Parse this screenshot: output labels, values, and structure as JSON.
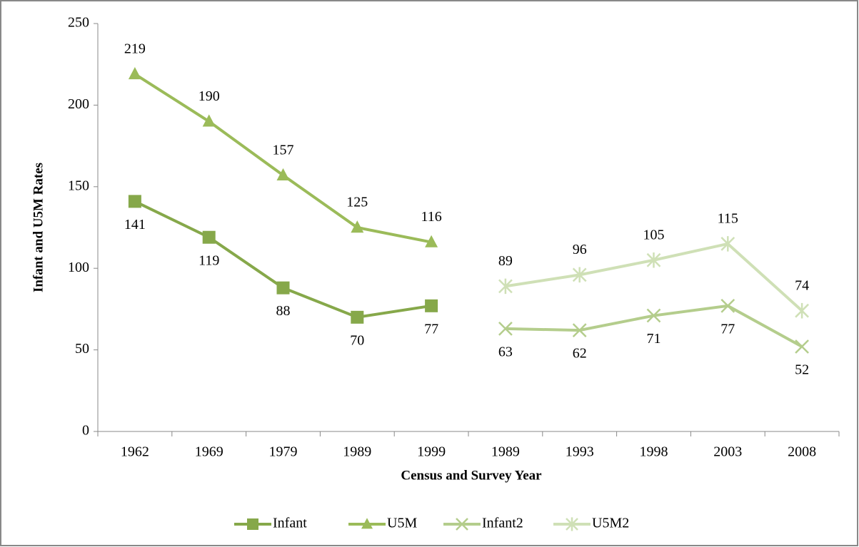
{
  "chart_data": {
    "type": "line",
    "x_label": "Census and Survey Year",
    "y_label": "Infant and U5M  Rates",
    "categories": [
      "1962",
      "1969",
      "1979",
      "1989",
      "1999",
      "1989",
      "1993",
      "1998",
      "2003",
      "2008"
    ],
    "series": [
      {
        "name": "Infant",
        "color": "#86a84a",
        "marker": "square",
        "label_position": "below",
        "values": [
          141,
          119,
          88,
          70,
          77,
          null,
          null,
          null,
          null,
          null
        ]
      },
      {
        "name": "U5M",
        "color": "#9bbb59",
        "marker": "triangle",
        "label_position": "above",
        "values": [
          219,
          190,
          157,
          125,
          116,
          null,
          null,
          null,
          null,
          null
        ]
      },
      {
        "name": "Infant2",
        "color": "#b4cd8c",
        "marker": "x",
        "label_position": "below",
        "values": [
          null,
          null,
          null,
          null,
          null,
          63,
          62,
          71,
          77,
          52
        ]
      },
      {
        "name": "U5M2",
        "color": "#cfe0b6",
        "marker": "star",
        "label_position": "above",
        "values": [
          null,
          null,
          null,
          null,
          null,
          89,
          96,
          105,
          115,
          74
        ]
      }
    ],
    "ylim": [
      0,
      250
    ],
    "yticks": [
      0,
      50,
      100,
      150,
      200,
      250
    ],
    "grid": false,
    "legend": "bottom"
  }
}
